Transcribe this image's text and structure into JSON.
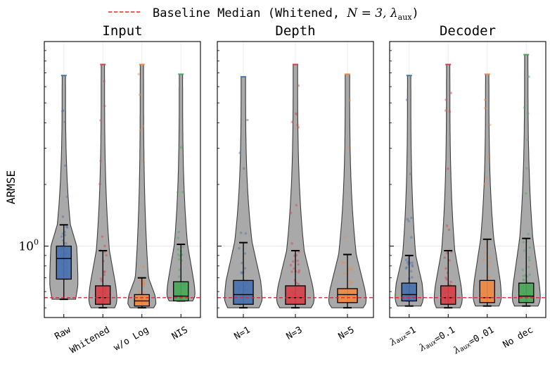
{
  "legend": {
    "label_text": "Baseline Median (Whitened, ",
    "label_math": "N = 3,  λ",
    "label_sub": "aux",
    "label_close": ")",
    "line_color": "#e8242e",
    "placement": "top-center"
  },
  "axis": {
    "ylabel": "ARMSE",
    "ytick_label_base": "10",
    "ytick_label_exp": "0",
    "yscale": "log",
    "ylim": [
      0.47,
      9.5
    ],
    "baseline_value": 0.56,
    "grid": true
  },
  "colors": {
    "violin_fill": "#a9a9a9",
    "violin_edge": "#3d3d3d",
    "blue": "#4a72b0",
    "red": "#d6424a",
    "orange": "#ee8a45",
    "green": "#4aa85a"
  },
  "chart_data": {
    "type": "violin",
    "panels": [
      {
        "title": "Input",
        "groups": [
          {
            "label": "Raw",
            "color": "blue",
            "min": 0.55,
            "q1": 0.69,
            "median": 0.87,
            "q3": 1.0,
            "whisker_low": 0.55,
            "whisker_high": 1.27,
            "max": 6.8
          },
          {
            "label": "Whitened",
            "color": "red",
            "min": 0.5,
            "q1": 0.52,
            "median": 0.56,
            "q3": 0.64,
            "whisker_low": 0.5,
            "whisker_high": 0.95,
            "max": 7.7
          },
          {
            "label": "w/o Log",
            "color": "orange",
            "min": 0.5,
            "q1": 0.51,
            "median": 0.54,
            "q3": 0.58,
            "whisker_low": 0.5,
            "whisker_high": 0.7,
            "max": 7.7
          },
          {
            "label": "NIS",
            "color": "green",
            "min": 0.54,
            "q1": 0.54,
            "median": 0.57,
            "q3": 0.67,
            "whisker_low": 0.54,
            "whisker_high": 1.02,
            "max": 6.9
          }
        ]
      },
      {
        "title": "Depth",
        "groups": [
          {
            "label": "N=1",
            "color": "blue",
            "min": 0.5,
            "q1": 0.52,
            "median": 0.58,
            "q3": 0.68,
            "whisker_low": 0.5,
            "whisker_high": 1.04,
            "max": 6.7
          },
          {
            "label": "N=3",
            "color": "red",
            "min": 0.5,
            "q1": 0.52,
            "median": 0.56,
            "q3": 0.64,
            "whisker_low": 0.5,
            "whisker_high": 0.95,
            "max": 7.7
          },
          {
            "label": "N=5",
            "color": "orange",
            "min": 0.5,
            "q1": 0.53,
            "median": 0.58,
            "q3": 0.62,
            "whisker_low": 0.5,
            "whisker_high": 0.91,
            "max": 6.9
          }
        ]
      },
      {
        "title": "Decoder",
        "groups": [
          {
            "label_pre": "λ",
            "label_sub": "aux",
            "label_post": "=1",
            "color": "blue",
            "min": 0.51,
            "q1": 0.54,
            "median": 0.58,
            "q3": 0.66,
            "whisker_low": 0.51,
            "whisker_high": 0.9,
            "max": 6.8
          },
          {
            "label_pre": "λ",
            "label_sub": "aux",
            "label_post": "=0.1",
            "color": "red",
            "min": 0.5,
            "q1": 0.52,
            "median": 0.56,
            "q3": 0.64,
            "whisker_low": 0.5,
            "whisker_high": 0.95,
            "max": 7.7
          },
          {
            "label_pre": "λ",
            "label_sub": "aux",
            "label_post": "=0.01",
            "color": "orange",
            "min": 0.51,
            "q1": 0.53,
            "median": 0.56,
            "q3": 0.68,
            "whisker_low": 0.51,
            "whisker_high": 1.08,
            "max": 6.9
          },
          {
            "label_pre": "",
            "label_sub": "",
            "label_post": "No dec",
            "color": "green",
            "min": 0.51,
            "q1": 0.53,
            "median": 0.57,
            "q3": 0.66,
            "whisker_low": 0.51,
            "whisker_high": 1.09,
            "max": 8.6
          }
        ]
      }
    ]
  }
}
